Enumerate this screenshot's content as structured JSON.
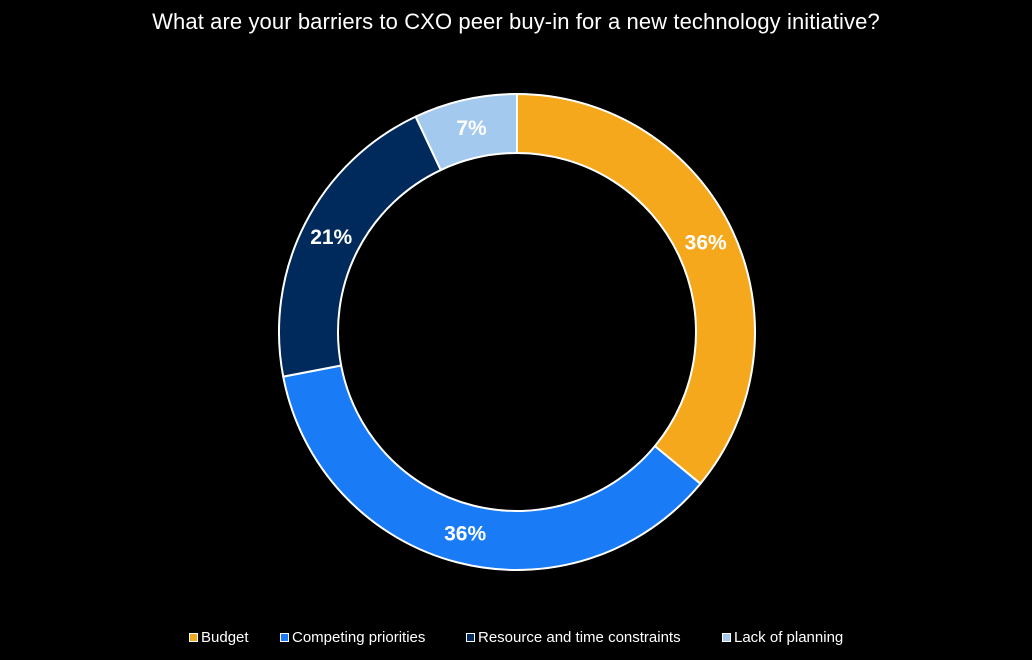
{
  "chart_data": {
    "type": "pie",
    "title": "What are your barriers to CXO peer buy-in for a new technology initiative?",
    "donut": true,
    "categories": [
      "Budget",
      "Competing priorities",
      "Resource and time constraints",
      "Lack of planning"
    ],
    "values": [
      36,
      36,
      21,
      7
    ],
    "value_labels": [
      "36%",
      "36%",
      "21%",
      "7%"
    ],
    "colors": [
      "#F6A81C",
      "#1A7BF7",
      "#002A5C",
      "#A3C9EE"
    ],
    "label_colors": [
      "#ffffff",
      "#ffffff",
      "#ffffff",
      "#ffffff"
    ],
    "start": "top, clockwise",
    "legend_position": "bottom"
  }
}
